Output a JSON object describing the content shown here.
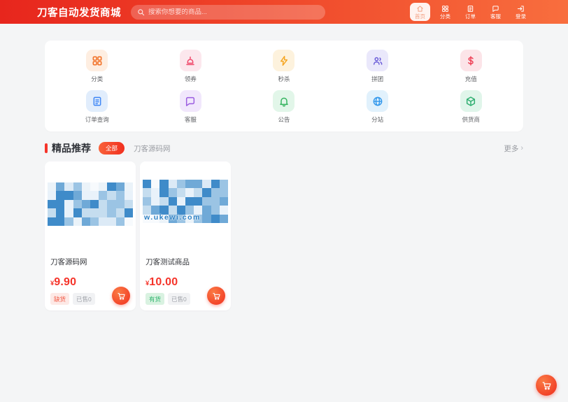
{
  "header": {
    "logo": "刀客自动发货商城",
    "search": {
      "placeholder": "搜索你想要的商品..."
    },
    "nav": [
      {
        "label": "首页",
        "icon": "home-icon",
        "active": true
      },
      {
        "label": "分类",
        "icon": "grid-icon",
        "active": false
      },
      {
        "label": "订单",
        "icon": "document-icon",
        "active": false
      },
      {
        "label": "客服",
        "icon": "chat-icon",
        "active": false
      },
      {
        "label": "登录",
        "icon": "login-icon",
        "active": false
      }
    ]
  },
  "services": {
    "items": [
      {
        "label": "分类",
        "icon": "grid-icon"
      },
      {
        "label": "领券",
        "icon": "horn-icon"
      },
      {
        "label": "秒杀",
        "icon": "lightning-icon"
      },
      {
        "label": "拼团",
        "icon": "users-icon"
      },
      {
        "label": "充值",
        "icon": "dollar-icon"
      },
      {
        "label": "订单查询",
        "icon": "document-icon"
      },
      {
        "label": "客服",
        "icon": "chat-icon"
      },
      {
        "label": "公告",
        "icon": "bell-icon"
      },
      {
        "label": "分站",
        "icon": "globe-icon"
      },
      {
        "label": "供货商",
        "icon": "cube-icon"
      }
    ]
  },
  "recommend": {
    "title": "精品推荐",
    "filter_all": "全部",
    "tab": "刀客源码网",
    "more_label": "更多",
    "more_chevron": "›"
  },
  "products": [
    {
      "title": "刀客源码网",
      "currency": "¥",
      "price": "9.90",
      "stock_badge": "缺货",
      "sold_badge": "已售0",
      "watermark": ""
    },
    {
      "title": "刀客测试商品",
      "currency": "¥",
      "price": "10.00",
      "stock_badge": "有货",
      "sold_badge": "已售0",
      "watermark": "w.ukewi.com"
    }
  ],
  "colors": {
    "header_gradient_start": "#e7261d",
    "header_gradient_end": "#f86e3e",
    "accent": "#f5342a",
    "price_red": "#f5342a",
    "stock_out_text": "#f25742",
    "stock_in_text": "#2db46c",
    "page_background": "#f4f5f6"
  }
}
